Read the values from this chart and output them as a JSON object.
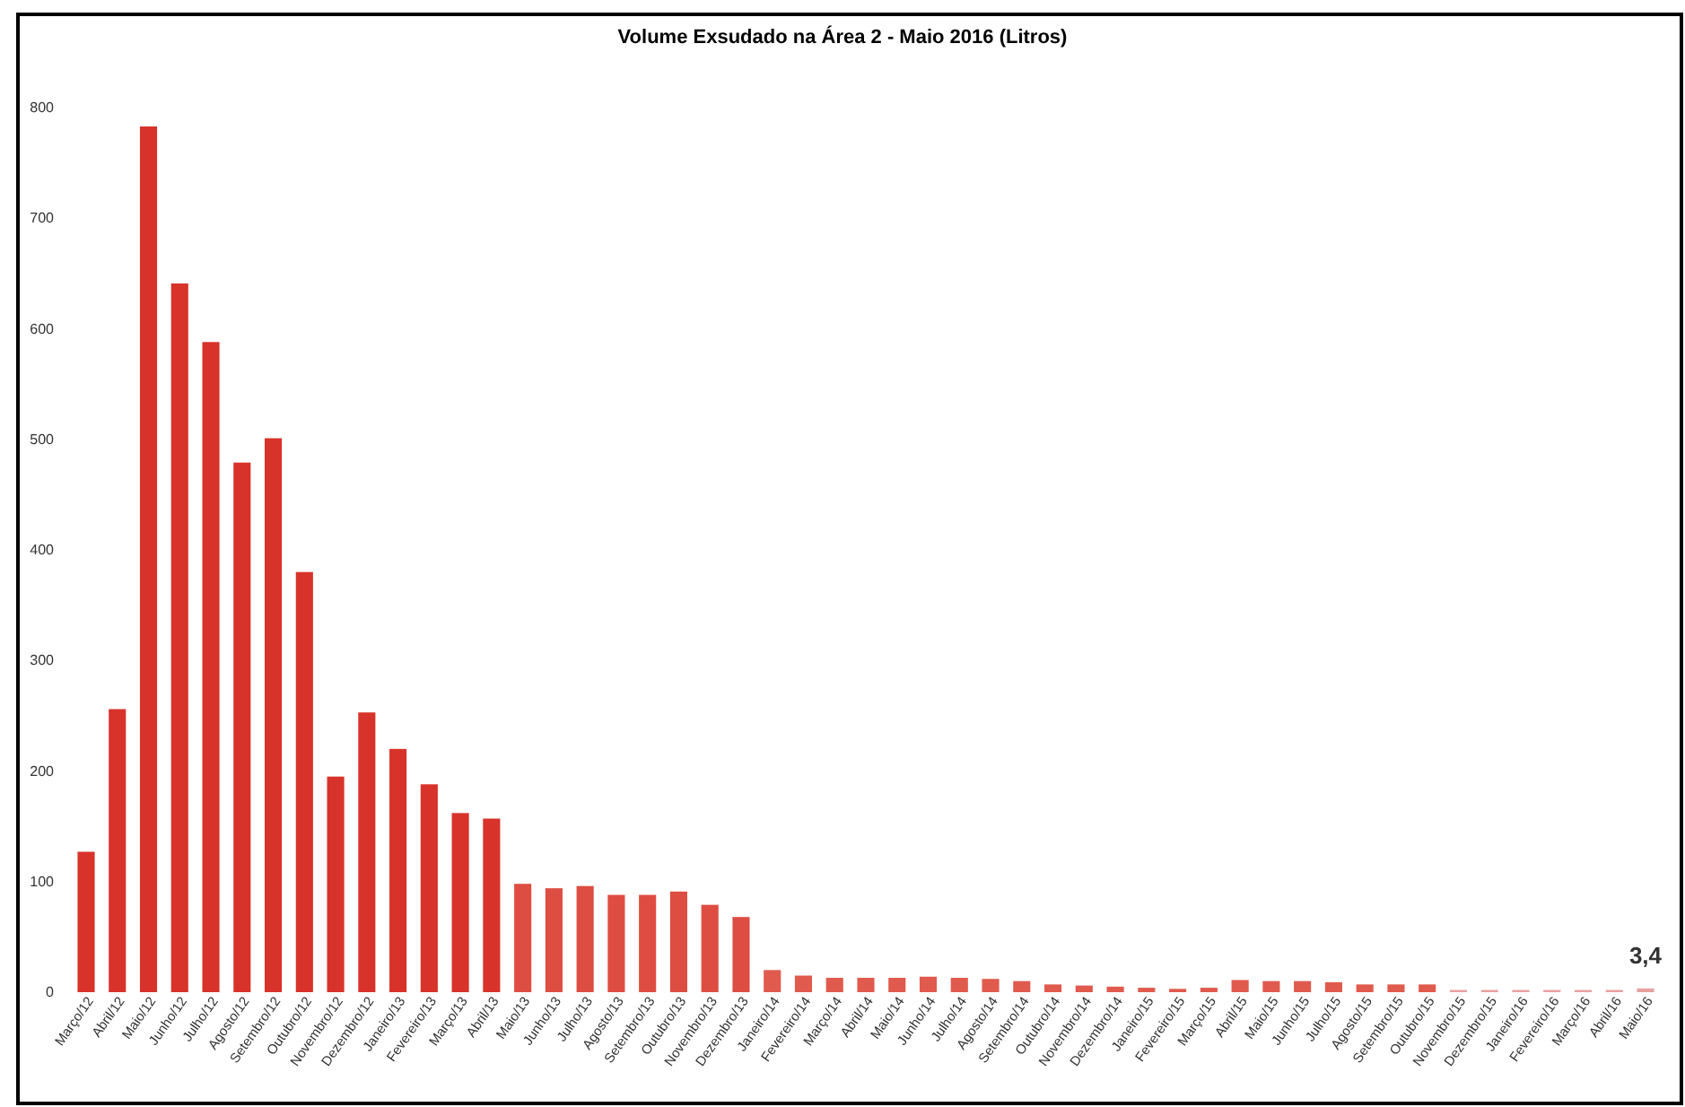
{
  "chart_data": {
    "type": "bar",
    "title": "Volume Exsudado na Área 2 - Maio 2016 (Litros)",
    "categories": [
      "Março/12",
      "Abril/12",
      "Maio/12",
      "Junho/12",
      "Julho/12",
      "Agosto/12",
      "Setembro/12",
      "Outubro/12",
      "Novembro/12",
      "Dezembro/12",
      "Janeiro/13",
      "Fevereiro/13",
      "Março/13",
      "Abril/13",
      "Maio/13",
      "Junho/13",
      "Julho/13",
      "Agosto/13",
      "Setembro/13",
      "Outubro/13",
      "Novembro/13",
      "Dezembro/13",
      "Janeiro/14",
      "Fevereiro/14",
      "Março/14",
      "Abril/14",
      "Maio/14",
      "Junho/14",
      "Julho/14",
      "Agosto/14",
      "Setembro/14",
      "Outubro/14",
      "Novembro/14",
      "Dezembro/14",
      "Janeiro/15",
      "Fevereiro/15",
      "Março/15",
      "Abril/15",
      "Maio/15",
      "Junho/15",
      "Julho/15",
      "Agosto/15",
      "Setembro/15",
      "Outubro/15",
      "Novembro/15",
      "Dezembro/15",
      "Janeiro/16",
      "Fevereiro/16",
      "Março/16",
      "Abril/16",
      "Maio/16"
    ],
    "values": [
      127,
      256,
      783,
      641,
      588,
      479,
      501,
      380,
      195,
      253,
      220,
      188,
      162,
      157,
      98,
      94,
      96,
      88,
      88,
      91,
      79,
      68,
      20,
      15,
      13,
      13,
      13,
      14,
      13,
      12,
      10,
      7,
      6,
      5,
      4,
      3,
      4,
      11,
      10,
      10,
      9,
      7,
      7,
      7,
      2,
      2,
      2,
      2,
      2,
      2,
      3.4
    ],
    "value_labels": [
      null,
      null,
      null,
      null,
      null,
      null,
      null,
      null,
      null,
      null,
      null,
      null,
      null,
      null,
      null,
      null,
      null,
      null,
      null,
      null,
      null,
      null,
      null,
      null,
      null,
      null,
      null,
      null,
      null,
      null,
      null,
      null,
      null,
      null,
      null,
      null,
      null,
      null,
      null,
      null,
      null,
      null,
      null,
      null,
      null,
      null,
      null,
      null,
      null,
      null,
      "3,4"
    ],
    "colors": [
      "#d8332a",
      "#d8332a",
      "#d8332a",
      "#d8332a",
      "#d8332a",
      "#d8332a",
      "#d8332a",
      "#d8332a",
      "#d8332a",
      "#d8332a",
      "#d8332a",
      "#d8332a",
      "#d8332a",
      "#d8332a",
      "#de4d42",
      "#de4d42",
      "#de4d42",
      "#de4d42",
      "#de4d42",
      "#de4d42",
      "#de4d42",
      "#de4d42",
      "#e05a4e",
      "#e05a4e",
      "#e05a4e",
      "#e05a4e",
      "#e05a4e",
      "#e05a4e",
      "#e05a4e",
      "#e05a4e",
      "#e05a4e",
      "#e05a4e",
      "#e05a4e",
      "#e05a4e",
      "#e05a4e",
      "#e05a4e",
      "#e05a4e",
      "#e05a4e",
      "#e05a4e",
      "#e05a4e",
      "#e05a4e",
      "#e05a4e",
      "#e05a4e",
      "#e05a4e",
      "#e8a0a0",
      "#e8a0a0",
      "#e8a0a0",
      "#e8a0a0",
      "#e8a0a0",
      "#e8a0a0",
      "#e8a0a0"
    ],
    "ylim": [
      0,
      800
    ],
    "yticks": [
      0,
      100,
      200,
      300,
      400,
      500,
      600,
      700,
      800
    ],
    "grid": false
  }
}
